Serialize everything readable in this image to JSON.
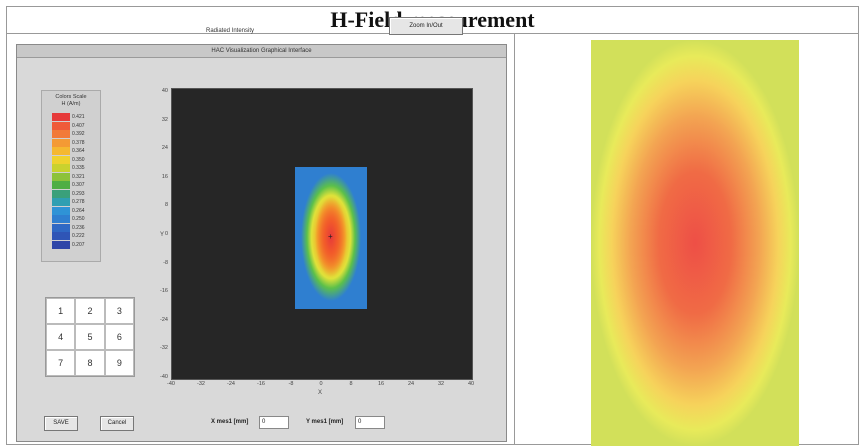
{
  "header": {
    "title": "H-Field measurement"
  },
  "window": {
    "title": "HAC Visualization Graphical Interface",
    "zoom_label": "Zoom In/Out",
    "plot_title": "Radiated Intensity"
  },
  "color_scale": {
    "title": "Colors Scale",
    "unit": "H (A/m)",
    "entries": [
      {
        "value": "0.421",
        "color": "#e63a3a"
      },
      {
        "value": "0.407",
        "color": "#ef5a3a"
      },
      {
        "value": "0.392",
        "color": "#f27a38"
      },
      {
        "value": "0.378",
        "color": "#f49a34"
      },
      {
        "value": "0.364",
        "color": "#f5b830"
      },
      {
        "value": "0.350",
        "color": "#efd22e"
      },
      {
        "value": "0.335",
        "color": "#c9d22e"
      },
      {
        "value": "0.321",
        "color": "#8dc23a"
      },
      {
        "value": "0.307",
        "color": "#4fae44"
      },
      {
        "value": "0.293",
        "color": "#3aa07a"
      },
      {
        "value": "0.278",
        "color": "#2f9fb2"
      },
      {
        "value": "0.264",
        "color": "#2f93d6"
      },
      {
        "value": "0.250",
        "color": "#2f7fd0"
      },
      {
        "value": "0.236",
        "color": "#2f68c4"
      },
      {
        "value": "0.222",
        "color": "#2f55b6"
      },
      {
        "value": "0.207",
        "color": "#2f46a8"
      }
    ]
  },
  "keypad": [
    "1",
    "2",
    "3",
    "4",
    "5",
    "6",
    "7",
    "8",
    "9"
  ],
  "axes": {
    "y_label": "Y",
    "x_label": "X",
    "y_ticks": [
      "40",
      "32",
      "24",
      "16",
      "8",
      "0",
      "-8",
      "-16",
      "-24",
      "-32",
      "-40"
    ],
    "x_ticks": [
      "-40",
      "-32",
      "-24",
      "-16",
      "-8",
      "0",
      "8",
      "16",
      "24",
      "32",
      "40"
    ]
  },
  "buttons": {
    "save": "SAVE",
    "cancel": "Cancel"
  },
  "measure": {
    "x_label": "X mes1 [mm]",
    "x_value": "0",
    "y_label": "Y mes1 [mm]",
    "y_value": "0"
  }
}
